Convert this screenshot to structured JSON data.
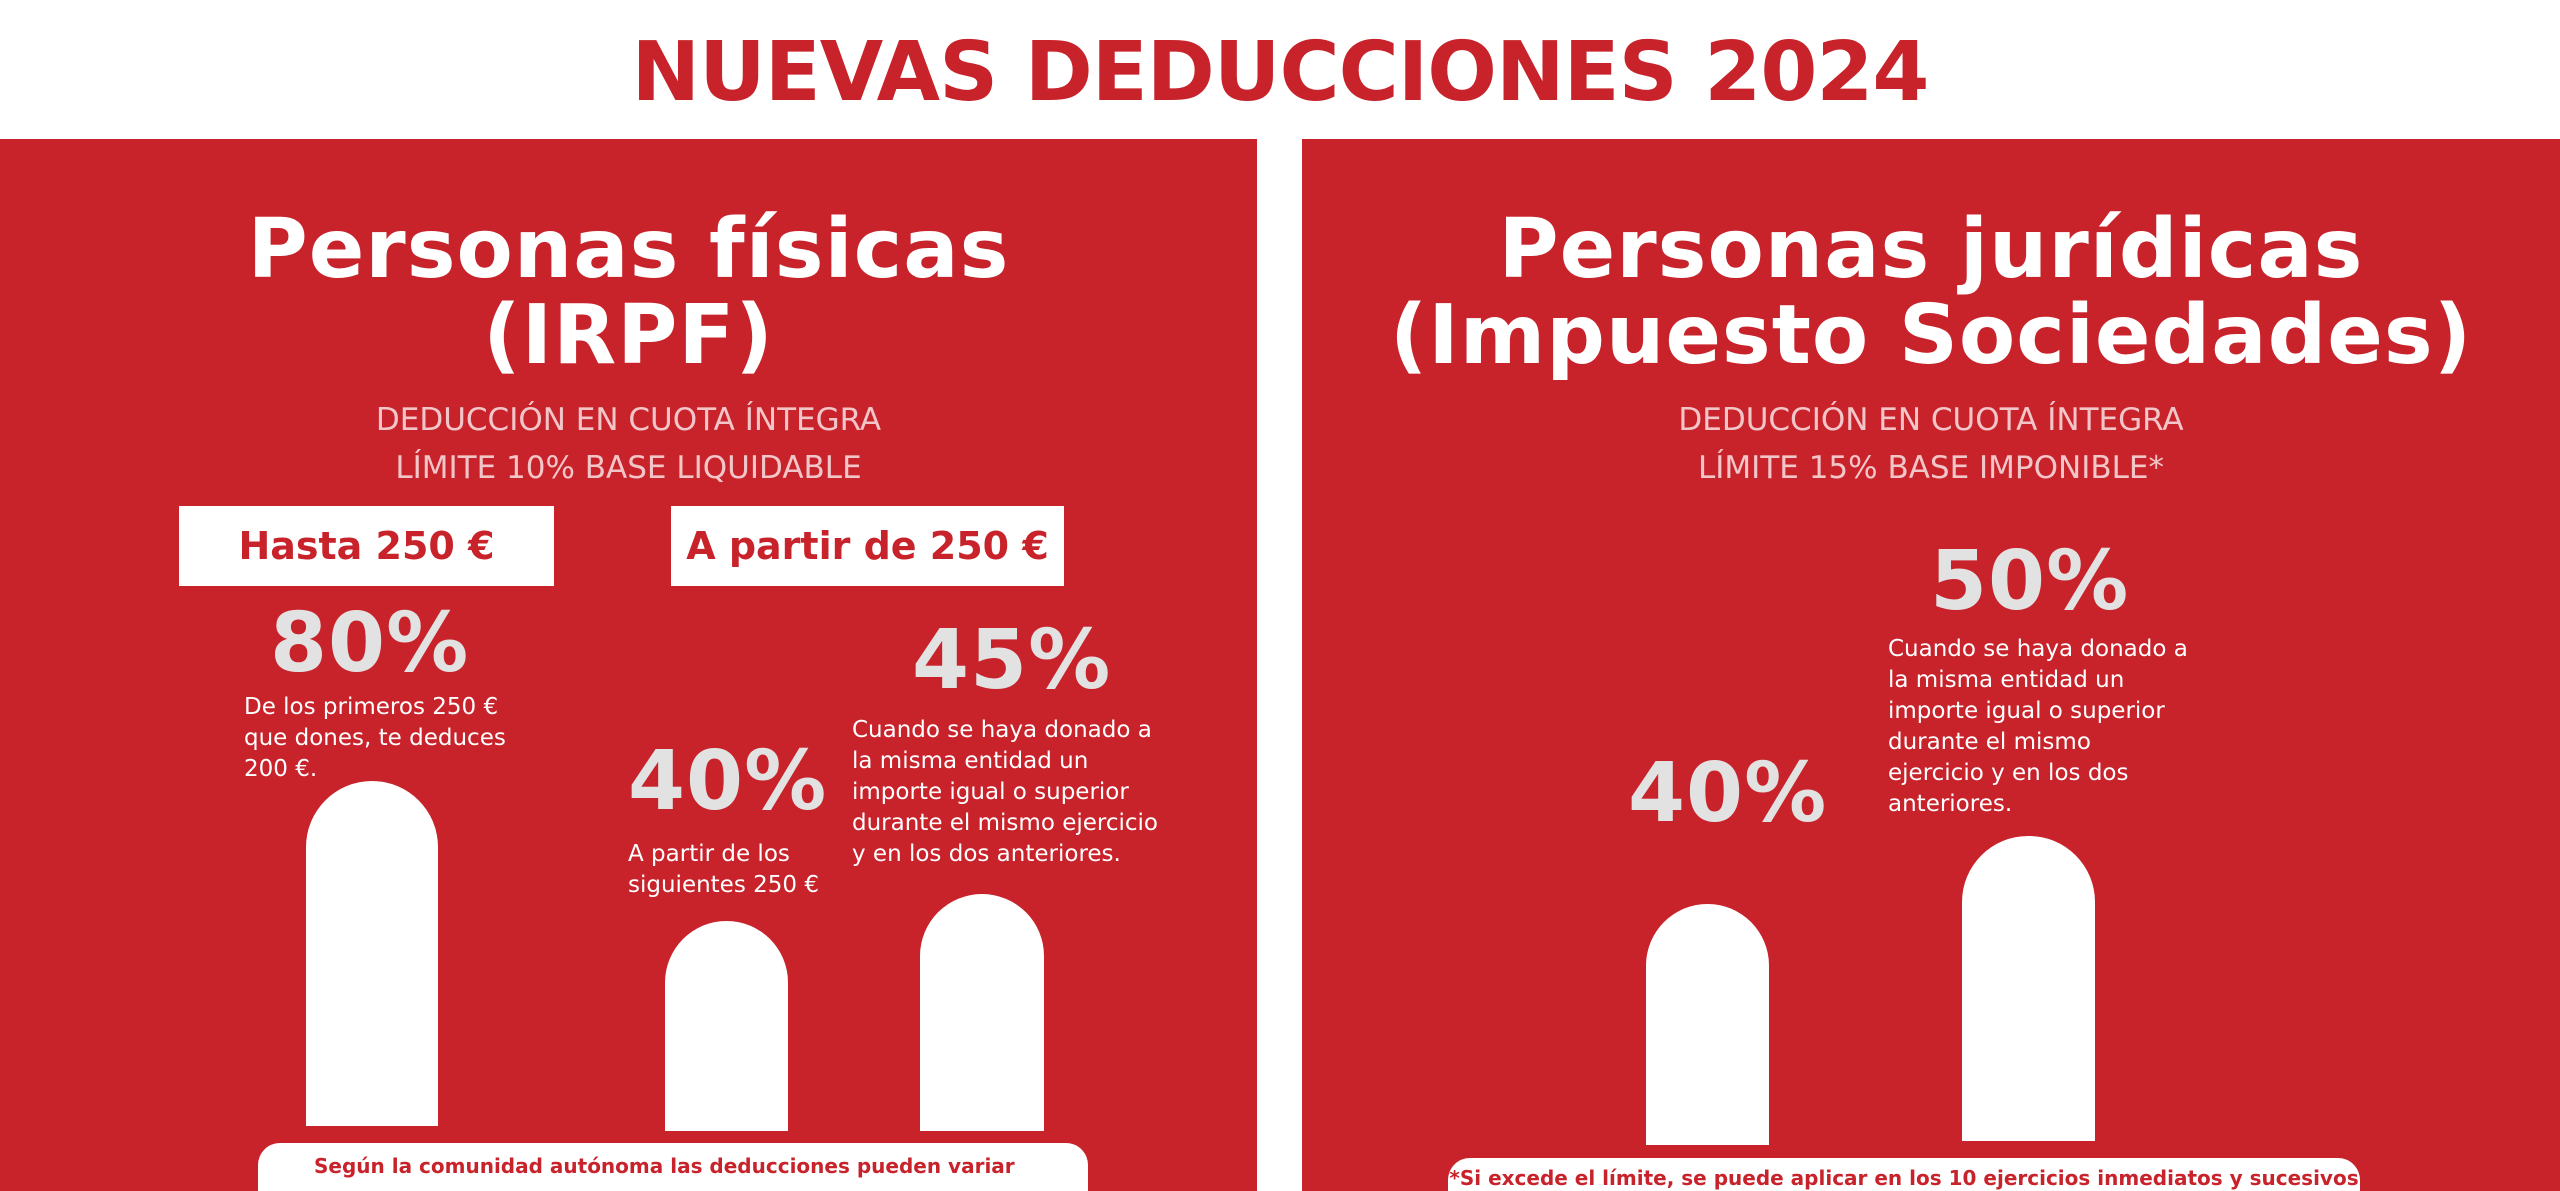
{
  "title": "NUEVAS DEDUCCIONES 2024",
  "left": {
    "heading_line1": "Personas físicas",
    "heading_line2": "(IRPF)",
    "sub_line1": "DEDUCCIÓN EN CUOTA ÍNTEGRA",
    "sub_line2": "LÍMITE 10% BASE LIQUIDABLE",
    "tag1": "Hasta 250 €",
    "tag2": "A partir de 250 €",
    "item1": {
      "pct": "80%",
      "desc": "De los primeros 250 € que dones, te deduces 200 €."
    },
    "item2": {
      "pct": "40%",
      "desc": "A partir de los siguientes 250 €"
    },
    "item3": {
      "pct": "45%",
      "desc": "Cuando se haya donado a la misma entidad un importe igual o superior durante el mismo ejercicio y en los dos anteriores."
    },
    "footer": "Según la comunidad autónoma las deducciones pueden variar"
  },
  "right": {
    "heading_line1": "Personas jurídicas",
    "heading_line2": "(Impuesto Sociedades)",
    "sub_line1": "DEDUCCIÓN EN CUOTA ÍNTEGRA",
    "sub_line2": "LÍMITE 15% BASE IMPONIBLE*",
    "item1": {
      "pct": "40%"
    },
    "item2": {
      "pct": "50%",
      "desc": "Cuando se haya donado a la misma entidad un importe igual o superior durante el mismo ejercicio y en los dos anteriores."
    },
    "footer": "*Si excede el límite, se puede aplicar en los 10 ejercicios inmediatos y sucesivos"
  },
  "colors": {
    "brand_red": "#c8222b",
    "white": "#ffffff",
    "pct_gray": "#e2e2e2"
  }
}
